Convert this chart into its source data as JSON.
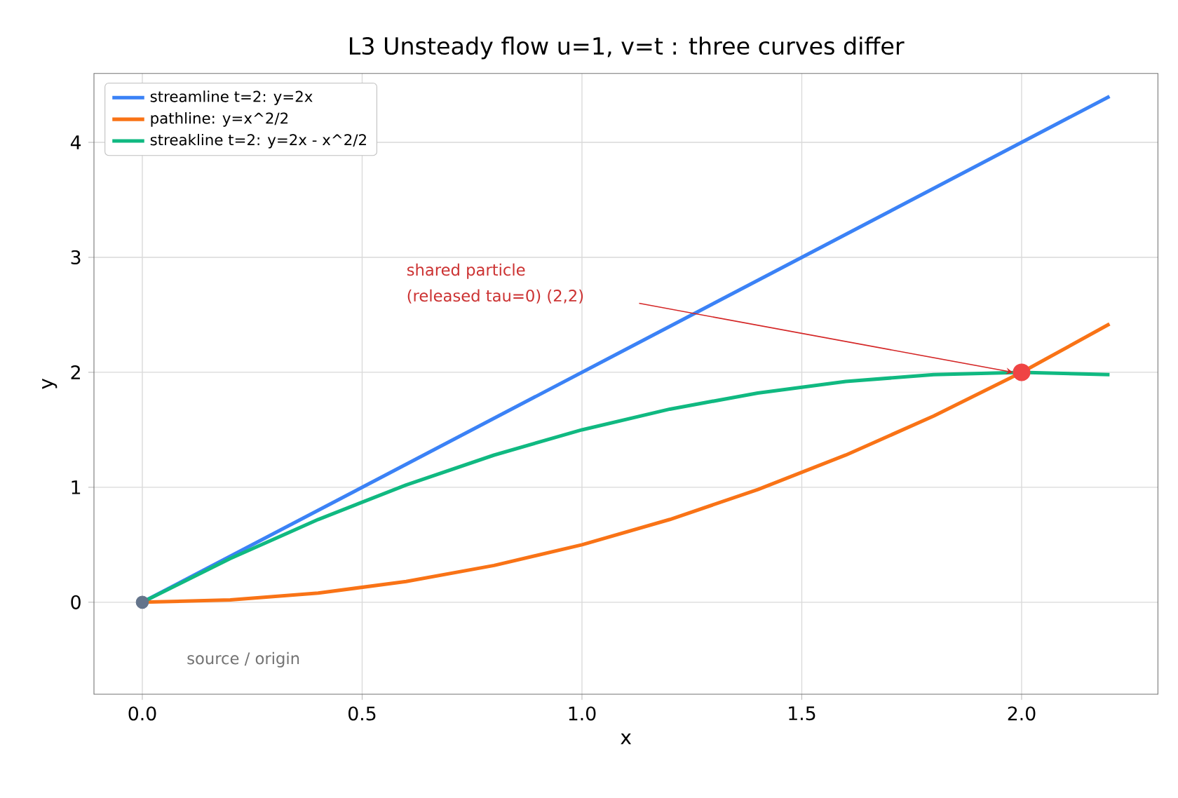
{
  "chart_data": {
    "type": "line",
    "title": "L3  Unsteady flow u=1, v=t : three curves differ",
    "xlabel": "x",
    "ylabel": "y",
    "xlim": [
      -0.11,
      2.31
    ],
    "ylim": [
      -0.8,
      4.6
    ],
    "xticks": [
      {
        "value": 0,
        "label": "0.0"
      },
      0.5,
      {
        "value": 1,
        "label": "1.0"
      },
      1.5,
      {
        "value": 2,
        "label": "2.0"
      }
    ],
    "yticks": [
      0,
      1,
      2,
      3,
      4
    ],
    "grid": true,
    "legend": "top left",
    "line_style": "solid",
    "series": [
      {
        "name": "streamline t=2:  y=2x",
        "color": "#3b82f6",
        "x": [
          0,
          2.2
        ],
        "values": [
          0,
          4.4
        ]
      },
      {
        "name": "pathline:  y=x^2/2",
        "color": "#f97316",
        "x": [
          0,
          0.2,
          0.4,
          0.6,
          0.8,
          1.0,
          1.2,
          1.4,
          1.6,
          1.8,
          2.0,
          2.2
        ],
        "values": [
          0,
          0.02,
          0.08,
          0.18,
          0.32,
          0.5,
          0.72,
          0.98,
          1.28,
          1.62,
          2.0,
          2.42
        ]
      },
      {
        "name": "streakline t=2:  y=2x - x^2/2",
        "color": "#10b981",
        "x": [
          0,
          0.2,
          0.4,
          0.6,
          0.8,
          1.0,
          1.2,
          1.4,
          1.6,
          1.8,
          2.0,
          2.2
        ],
        "values": [
          0,
          0.38,
          0.72,
          1.02,
          1.28,
          1.5,
          1.68,
          1.82,
          1.92,
          1.98,
          2.0,
          1.98
        ]
      },
      {
        "type": "scatter",
        "marker": "circle",
        "x": [
          0,
          2
        ],
        "values": [
          0,
          2
        ],
        "colors": [
          "#64748b",
          "#ef4444"
        ]
      }
    ],
    "annotations": [
      "shared particle",
      "(released tau=0)  (2,2)",
      "source / origin"
    ]
  }
}
